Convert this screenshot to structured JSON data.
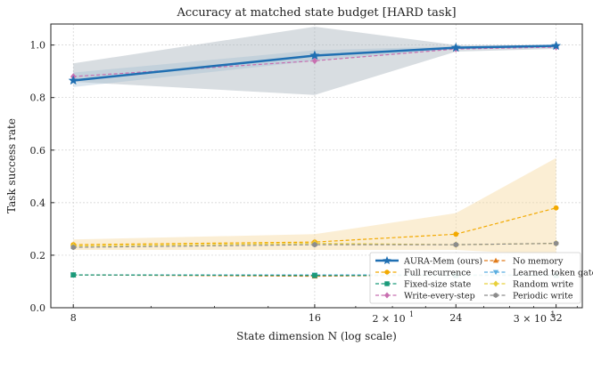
{
  "chart_data": {
    "type": "line",
    "title": "Accuracy at matched state budget [HARD task]",
    "xlabel": "State dimension N (log scale)",
    "ylabel": "Task success rate",
    "x_scale": "log",
    "x": [
      8,
      16,
      24,
      32
    ],
    "xlim": [
      7.5,
      34.5
    ],
    "ylim": [
      0.0,
      1.08
    ],
    "grid": true,
    "legend_position": "bottom-right",
    "x_tick_labels": [
      "8",
      "16",
      "24",
      "32"
    ],
    "x_minor_labels": [
      {
        "value": 20,
        "base": "2 × 10",
        "exp": "1"
      },
      {
        "value": 30,
        "base": "3 × 10",
        "exp": "1"
      }
    ],
    "y_ticks": [
      0.0,
      0.2,
      0.4,
      0.6,
      0.8,
      1.0
    ],
    "y_tick_labels": [
      "0.0",
      "0.2",
      "0.4",
      "0.6",
      "0.8",
      "1.0"
    ],
    "series": [
      {
        "name": "AURA-Mem (ours)",
        "values": [
          0.865,
          0.96,
          0.99,
          0.997
        ],
        "band_low": [
          0.84,
          0.94,
          0.985,
          0.99
        ],
        "band_high": [
          0.895,
          0.98,
          0.995,
          1.0
        ],
        "color": "#1f6fb2",
        "marker": "star",
        "dash": "solid",
        "width": 2.5
      },
      {
        "name": "No memory",
        "values": [
          0.125,
          0.12,
          0.125,
          0.125
        ],
        "color": "#e07b1a",
        "marker": "triangle-up",
        "dash": "dashed",
        "width": 1.2
      },
      {
        "name": "Full recurrence",
        "values": [
          0.24,
          0.25,
          0.28,
          0.38
        ],
        "band_low": [
          0.22,
          0.22,
          0.22,
          0.2
        ],
        "band_high": [
          0.26,
          0.28,
          0.36,
          0.57
        ],
        "color": "#f2a900",
        "marker": "circle",
        "dash": "dashed",
        "width": 1.2
      },
      {
        "name": "Learned token gate",
        "values": [
          0.125,
          0.125,
          0.125,
          0.125
        ],
        "color": "#5aaee0",
        "marker": "triangle-down",
        "dash": "dashed",
        "width": 1.2
      },
      {
        "name": "Fixed-size state",
        "values": [
          0.125,
          0.123,
          0.123,
          0.123
        ],
        "color": "#1a9a7a",
        "marker": "square",
        "dash": "dashed",
        "width": 1.2
      },
      {
        "name": "Random write",
        "values": [
          0.235,
          0.245,
          0.24,
          0.245
        ],
        "color": "#e8d03a",
        "marker": "diamond",
        "dash": "dashed",
        "width": 1.2
      },
      {
        "name": "Write-every-step",
        "values": [
          0.88,
          0.94,
          0.985,
          0.992
        ],
        "band_low": [
          0.86,
          0.81,
          0.975,
          0.985
        ],
        "band_high": [
          0.93,
          1.07,
          1.0,
          1.0
        ],
        "color": "#c86fb0",
        "marker": "diamond",
        "dash": "dashed",
        "width": 1.2
      },
      {
        "name": "Periodic write",
        "values": [
          0.23,
          0.24,
          0.24,
          0.245
        ],
        "color": "#8c8c8c",
        "marker": "hexagon",
        "dash": "dashed",
        "width": 1.2
      }
    ],
    "legend_order": [
      "AURA-Mem (ours)",
      "No memory",
      "Full recurrence",
      "Learned token gate",
      "Fixed-size state",
      "Random write",
      "Write-every-step",
      "Periodic write"
    ]
  }
}
